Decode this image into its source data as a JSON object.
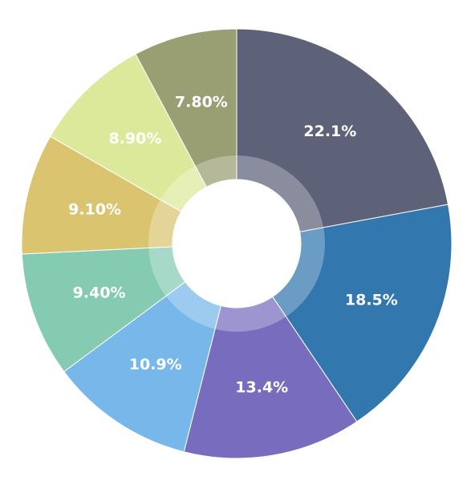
{
  "chart_data": {
    "type": "pie",
    "variant": "donut",
    "title": "",
    "slices": [
      {
        "label": "22.1%",
        "value": 22.1,
        "color": "#5d6279"
      },
      {
        "label": "18.5%",
        "value": 18.5,
        "color": "#3277ae"
      },
      {
        "label": "13.4%",
        "value": 13.4,
        "color": "#776cbd"
      },
      {
        "label": "10.9%",
        "value": 10.9,
        "color": "#77b7e9"
      },
      {
        "label": "9.40%",
        "value": 9.4,
        "color": "#84cbb2"
      },
      {
        "label": "9.10%",
        "value": 9.1,
        "color": "#dbc470"
      },
      {
        "label": "8.90%",
        "value": 8.9,
        "color": "#dde99a"
      },
      {
        "label": "7.80%",
        "value": 7.8,
        "color": "#999e73"
      }
    ],
    "start_angle": "12 o'clock",
    "direction": "clockwise",
    "legend": "none",
    "data_labels": "inside"
  }
}
